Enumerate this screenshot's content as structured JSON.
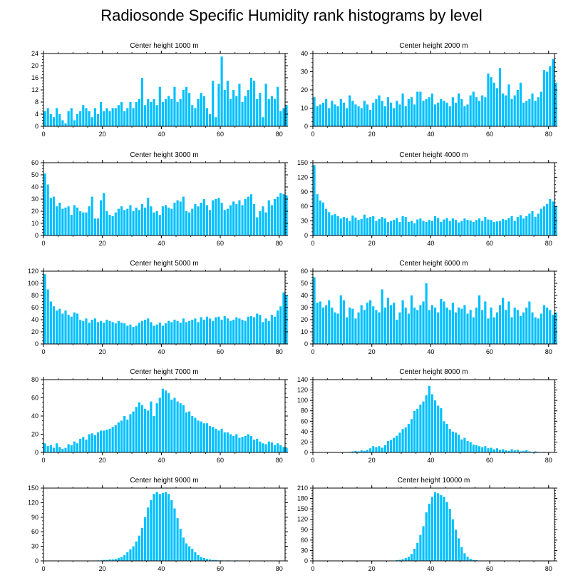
{
  "figure_title": "Radiosonde Specific Humidity rank histograms by level",
  "colors": {
    "bar": "#00BFFF",
    "axis": "#000000"
  },
  "chart_data": [
    {
      "type": "bar",
      "title": "Center height 1000 m",
      "xlim": [
        0,
        82
      ],
      "ylim": [
        0,
        24
      ],
      "xticks": [
        0,
        20,
        40,
        60,
        80
      ],
      "yticks": [
        0,
        4,
        8,
        12,
        16,
        20,
        24
      ],
      "values": [
        5,
        6,
        4,
        3,
        6,
        4,
        2,
        1,
        5,
        6,
        2,
        4,
        5,
        7,
        6,
        5,
        3,
        6,
        4,
        8,
        5,
        6,
        5,
        6,
        6,
        7,
        8,
        5,
        6,
        8,
        6,
        8,
        9,
        16,
        7,
        9,
        8,
        9,
        7,
        13,
        8,
        9,
        10,
        9,
        13,
        8,
        9,
        12,
        13,
        11,
        7,
        6,
        9,
        11,
        10,
        6,
        4,
        15,
        3,
        14,
        23,
        12,
        15,
        9,
        12,
        10,
        14,
        8,
        10,
        12,
        16,
        15,
        9,
        11,
        3,
        14,
        9,
        10,
        9,
        13,
        5,
        6,
        7
      ]
    },
    {
      "type": "bar",
      "title": "Center height 2000 m",
      "xlim": [
        0,
        82
      ],
      "ylim": [
        0,
        40
      ],
      "xticks": [
        0,
        20,
        40,
        60,
        80
      ],
      "yticks": [
        0,
        10,
        20,
        30,
        40
      ],
      "values": [
        16,
        11,
        12,
        13,
        15,
        10,
        14,
        12,
        11,
        15,
        13,
        10,
        17,
        14,
        12,
        11,
        10,
        14,
        12,
        9,
        13,
        15,
        17,
        14,
        11,
        16,
        13,
        10,
        14,
        12,
        18,
        11,
        15,
        16,
        12,
        19,
        19,
        14,
        15,
        16,
        18,
        12,
        13,
        15,
        14,
        13,
        11,
        16,
        13,
        18,
        15,
        11,
        12,
        17,
        19,
        16,
        14,
        17,
        16,
        29,
        27,
        24,
        21,
        32,
        18,
        17,
        23,
        15,
        17,
        20,
        24,
        13,
        14,
        15,
        18,
        14,
        16,
        19,
        31,
        30,
        33,
        37,
        24
      ]
    },
    {
      "type": "bar",
      "title": "Center height 3000 m",
      "xlim": [
        0,
        82
      ],
      "ylim": [
        0,
        60
      ],
      "xticks": [
        0,
        20,
        40,
        60,
        80
      ],
      "yticks": [
        0,
        10,
        20,
        30,
        40,
        50,
        60
      ],
      "values": [
        51,
        42,
        31,
        32,
        24,
        27,
        22,
        23,
        24,
        17,
        25,
        23,
        20,
        19,
        19,
        24,
        32,
        14,
        14,
        29,
        35,
        20,
        17,
        16,
        19,
        22,
        24,
        21,
        22,
        25,
        20,
        23,
        21,
        26,
        23,
        31,
        24,
        19,
        20,
        17,
        24,
        25,
        23,
        22,
        27,
        29,
        28,
        32,
        20,
        19,
        22,
        26,
        24,
        27,
        30,
        25,
        21,
        29,
        30,
        31,
        27,
        21,
        22,
        25,
        28,
        26,
        29,
        25,
        30,
        32,
        34,
        26,
        15,
        20,
        24,
        19,
        29,
        25,
        30,
        32,
        35,
        34,
        33
      ]
    },
    {
      "type": "bar",
      "title": "Center height 4000 m",
      "xlim": [
        0,
        82
      ],
      "ylim": [
        0,
        150
      ],
      "xticks": [
        0,
        20,
        40,
        60,
        80
      ],
      "yticks": [
        0,
        30,
        60,
        90,
        120,
        150
      ],
      "values": [
        145,
        85,
        72,
        68,
        55,
        48,
        42,
        44,
        40,
        35,
        38,
        36,
        30,
        41,
        37,
        32,
        34,
        43,
        36,
        38,
        40,
        30,
        34,
        38,
        35,
        28,
        30,
        32,
        36,
        28,
        40,
        38,
        28,
        30,
        25,
        33,
        35,
        30,
        28,
        32,
        30,
        40,
        36,
        28,
        33,
        36,
        30,
        35,
        32,
        27,
        30,
        35,
        32,
        31,
        28,
        32,
        35,
        30,
        38,
        33,
        32,
        28,
        29,
        30,
        34,
        32,
        36,
        40,
        30,
        38,
        42,
        35,
        40,
        45,
        50,
        38,
        45,
        55,
        60,
        65,
        75,
        70,
        60
      ]
    },
    {
      "type": "bar",
      "title": "Center height 5000 m",
      "xlim": [
        0,
        82
      ],
      "ylim": [
        0,
        120
      ],
      "xticks": [
        0,
        20,
        40,
        60,
        80
      ],
      "yticks": [
        0,
        20,
        40,
        60,
        80,
        100,
        120
      ],
      "values": [
        115,
        90,
        70,
        62,
        55,
        58,
        50,
        55,
        48,
        45,
        52,
        50,
        40,
        38,
        42,
        35,
        40,
        42,
        36,
        38,
        35,
        40,
        38,
        36,
        34,
        38,
        35,
        34,
        30,
        32,
        28,
        30,
        35,
        38,
        40,
        42,
        36,
        30,
        32,
        35,
        30,
        34,
        38,
        36,
        40,
        38,
        35,
        42,
        36,
        38,
        40,
        42,
        36,
        44,
        40,
        45,
        42,
        38,
        44,
        45,
        40,
        46,
        42,
        38,
        40,
        44,
        42,
        40,
        38,
        45,
        46,
        44,
        50,
        48,
        36,
        42,
        38,
        48,
        45,
        55,
        62,
        85,
        80
      ]
    },
    {
      "type": "bar",
      "title": "Center height 6000 m",
      "xlim": [
        0,
        82
      ],
      "ylim": [
        0,
        60
      ],
      "xticks": [
        0,
        20,
        40,
        60,
        80
      ],
      "yticks": [
        0,
        10,
        20,
        30,
        40,
        50,
        60
      ],
      "values": [
        55,
        34,
        35,
        30,
        32,
        36,
        30,
        26,
        25,
        40,
        36,
        22,
        30,
        29,
        21,
        26,
        32,
        28,
        34,
        36,
        31,
        28,
        26,
        45,
        30,
        38,
        32,
        34,
        20,
        26,
        36,
        30,
        25,
        40,
        30,
        28,
        32,
        35,
        50,
        28,
        32,
        30,
        26,
        37,
        35,
        30,
        28,
        34,
        26,
        30,
        29,
        32,
        25,
        28,
        22,
        30,
        40,
        28,
        35,
        21,
        30,
        22,
        26,
        32,
        38,
        28,
        35,
        22,
        30,
        28,
        23,
        26,
        30,
        35,
        26,
        22,
        21,
        25,
        32,
        30,
        28,
        24,
        26
      ]
    },
    {
      "type": "bar",
      "title": "Center height 7000 m",
      "xlim": [
        0,
        82
      ],
      "ylim": [
        0,
        80
      ],
      "xticks": [
        0,
        20,
        40,
        60,
        80
      ],
      "yticks": [
        0,
        20,
        40,
        60,
        80
      ],
      "values": [
        10,
        7,
        8,
        5,
        10,
        6,
        4,
        5,
        9,
        8,
        12,
        10,
        15,
        17,
        14,
        20,
        21,
        19,
        22,
        24,
        24,
        25,
        26,
        28,
        30,
        33,
        35,
        40,
        36,
        42,
        45,
        50,
        55,
        52,
        48,
        46,
        56,
        40,
        54,
        60,
        70,
        68,
        65,
        58,
        60,
        56,
        54,
        52,
        44,
        45,
        40,
        38,
        35,
        34,
        32,
        32,
        29,
        28,
        26,
        24,
        26,
        22,
        22,
        20,
        18,
        20,
        16,
        17,
        18,
        20,
        18,
        14,
        15,
        12,
        10,
        9,
        12,
        11,
        8,
        10,
        8,
        6,
        5
      ]
    },
    {
      "type": "bar",
      "title": "Center height 8000 m",
      "xlim": [
        0,
        82
      ],
      "ylim": [
        0,
        140
      ],
      "xticks": [
        0,
        20,
        40,
        60,
        80
      ],
      "yticks": [
        0,
        20,
        40,
        60,
        80,
        100,
        120,
        140
      ],
      "values": [
        0,
        0,
        0,
        0,
        0,
        0,
        0,
        0,
        0,
        0,
        0,
        0,
        1,
        2,
        3,
        2,
        4,
        3,
        5,
        8,
        12,
        10,
        12,
        9,
        14,
        22,
        24,
        28,
        32,
        38,
        45,
        48,
        55,
        64,
        80,
        84,
        92,
        98,
        110,
        128,
        112,
        100,
        90,
        85,
        60,
        55,
        45,
        40,
        38,
        34,
        25,
        28,
        22,
        20,
        15,
        14,
        12,
        10,
        12,
        8,
        9,
        6,
        8,
        5,
        6,
        4,
        3,
        6,
        4,
        5,
        2,
        3,
        4,
        2,
        1,
        2,
        1,
        0,
        1,
        0,
        0,
        0,
        0
      ]
    },
    {
      "type": "bar",
      "title": "Center height 9000 m",
      "xlim": [
        0,
        82
      ],
      "ylim": [
        0,
        150
      ],
      "xticks": [
        0,
        20,
        40,
        60,
        80
      ],
      "yticks": [
        0,
        30,
        60,
        90,
        120,
        150
      ],
      "values": [
        0,
        0,
        0,
        0,
        0,
        0,
        0,
        0,
        0,
        0,
        0,
        0,
        0,
        0,
        0,
        0,
        0,
        0,
        1,
        1,
        2,
        2,
        3,
        3,
        4,
        6,
        8,
        12,
        18,
        24,
        30,
        40,
        52,
        68,
        90,
        110,
        125,
        138,
        142,
        138,
        140,
        142,
        138,
        125,
        108,
        88,
        66,
        48,
        36,
        30,
        25,
        18,
        12,
        8,
        6,
        4,
        3,
        2,
        2,
        1,
        1,
        0,
        1,
        0,
        0,
        1,
        0,
        0,
        0,
        0,
        0,
        0,
        0,
        0,
        0,
        0,
        0,
        0,
        0,
        0,
        0,
        0,
        0
      ]
    },
    {
      "type": "bar",
      "title": "Center height 10000 m",
      "xlim": [
        0,
        82
      ],
      "ylim": [
        0,
        210
      ],
      "xticks": [
        0,
        20,
        40,
        60,
        80
      ],
      "yticks": [
        0,
        30,
        60,
        90,
        120,
        150,
        180,
        210
      ],
      "values": [
        0,
        0,
        0,
        0,
        0,
        0,
        0,
        0,
        0,
        0,
        0,
        0,
        0,
        0,
        0,
        0,
        0,
        0,
        0,
        0,
        0,
        0,
        0,
        0,
        0,
        0,
        0,
        1,
        2,
        3,
        5,
        8,
        12,
        20,
        35,
        52,
        75,
        100,
        140,
        165,
        185,
        198,
        195,
        190,
        185,
        170,
        150,
        120,
        90,
        65,
        40,
        22,
        12,
        6,
        3,
        2,
        1,
        0,
        0,
        0,
        0,
        0,
        0,
        0,
        0,
        0,
        0,
        0,
        0,
        0,
        0,
        0,
        0,
        0,
        0,
        0,
        0,
        0,
        0,
        0,
        0,
        0,
        0
      ]
    }
  ]
}
